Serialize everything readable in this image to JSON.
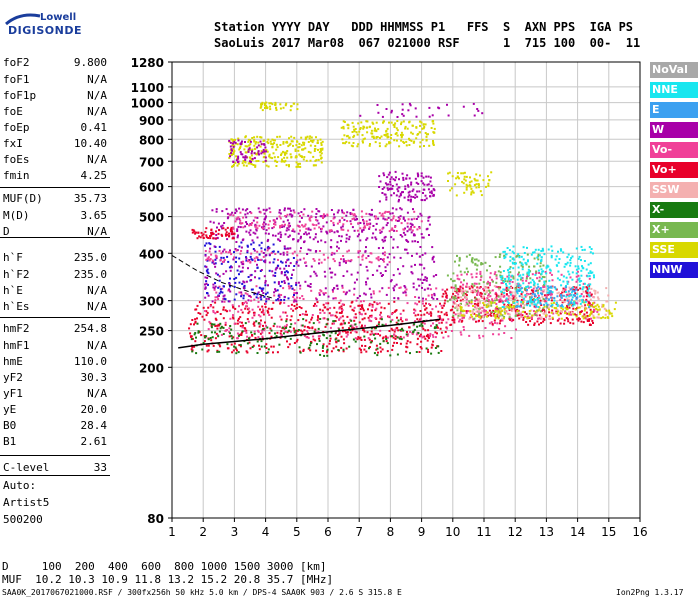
{
  "logo": {
    "line1": "Lowell",
    "line2": "DIGISONDE"
  },
  "header": {
    "row1": "Station YYYY DAY   DDD HHMMSS P1   FFS  S  AXN PPS  IGA PS",
    "row2": "SaoLuis 2017 Mar08  067 021000 RSF      1  715 100  00-  11"
  },
  "params": [
    {
      "name": "foF2",
      "value": "9.800"
    },
    {
      "name": "foF1",
      "value": "N/A"
    },
    {
      "name": "foF1p",
      "value": "N/A"
    },
    {
      "name": "foE",
      "value": "N/A"
    },
    {
      "name": "foEp",
      "value": "0.41"
    },
    {
      "name": "fxI",
      "value": "10.40"
    },
    {
      "name": "foEs",
      "value": "N/A"
    },
    {
      "name": "fmin",
      "value": "4.25"
    },
    {
      "name": "MUF(D)",
      "value": "35.73"
    },
    {
      "name": "M(D)",
      "value": "3.65"
    },
    {
      "name": "D",
      "value": "N/A"
    },
    {
      "name": "h`F",
      "value": "235.0"
    },
    {
      "name": "h`F2",
      "value": "235.0"
    },
    {
      "name": "h`E",
      "value": "N/A"
    },
    {
      "name": "h`Es",
      "value": "N/A"
    },
    {
      "name": "hmF2",
      "value": "254.8"
    },
    {
      "name": "hmF1",
      "value": "N/A"
    },
    {
      "name": "hmE",
      "value": "110.0"
    },
    {
      "name": "yF2",
      "value": "30.3"
    },
    {
      "name": "yF1",
      "value": "N/A"
    },
    {
      "name": "yE",
      "value": "20.0"
    },
    {
      "name": "B0",
      "value": "28.4"
    },
    {
      "name": "B1",
      "value": "2.61"
    },
    {
      "name": "C-level",
      "value": "33"
    }
  ],
  "auto": {
    "line1": "Auto:",
    "line2": "Artist5",
    "line3": "500200"
  },
  "legend": [
    {
      "label": "NoVal",
      "color": "#a8a8a8"
    },
    {
      "label": "NNE",
      "color": "#19e6ef"
    },
    {
      "label": "E",
      "color": "#3ca0f0"
    },
    {
      "label": "W",
      "color": "#a800a8"
    },
    {
      "label": "Vo-",
      "color": "#f04098"
    },
    {
      "label": "Vo+",
      "color": "#e8002a"
    },
    {
      "label": "SSW",
      "color": "#f4b0b0"
    },
    {
      "label": "X-",
      "color": "#187a10"
    },
    {
      "label": "X+",
      "color": "#78b850"
    },
    {
      "label": "SSE",
      "color": "#d8d800"
    },
    {
      "label": "NNW",
      "color": "#2010d8"
    }
  ],
  "muf_table": {
    "row1": "D     100  200  400  600  800 1000 1500 3000 [km]",
    "row2": "MUF  10.2 10.3 10.9 11.8 13.2 15.2 20.8 35.7 [MHz]"
  },
  "footer": {
    "left": "SAA0K_2017067021000.RSF / 300fx256h 50 kHz 5.0 km / DPS-4 SAA0K 903 / 2.6 S 315.8 E",
    "right": "Ion2Png 1.3.17"
  },
  "chart_data": {
    "type": "scatter",
    "title": "",
    "xlabel": "",
    "ylabel": "",
    "x_unit": "MHz",
    "y_unit": "km",
    "xlim": [
      1,
      16
    ],
    "ylim": [
      80,
      1280
    ],
    "y_scale": "log",
    "x_ticks": [
      1,
      2,
      3,
      4,
      5,
      6,
      7,
      8,
      9,
      10,
      11,
      12,
      13,
      14,
      15,
      16
    ],
    "y_ticks": [
      80,
      200,
      250,
      300,
      400,
      500,
      600,
      700,
      800,
      900,
      1000,
      1100,
      1280
    ],
    "grid": true,
    "legend_position": "right",
    "trace": {
      "name": "O-trace",
      "x": [
        1.2,
        2.0,
        3.0,
        4.0,
        5.0,
        6.0,
        7.0,
        8.0,
        9.0,
        9.6
      ],
      "y": [
        225,
        230,
        234,
        238,
        243,
        248,
        253,
        258,
        264,
        268
      ]
    },
    "trace_dashed": {
      "x": [
        1.0,
        1.8,
        2.6,
        3.4,
        4.2
      ],
      "y": [
        395,
        360,
        335,
        318,
        305
      ]
    },
    "clusters": [
      {
        "series": "Vo+",
        "xmin": 1.5,
        "xmax": 9.8,
        "ymin": 220,
        "ymax": 300,
        "count": 520
      },
      {
        "series": "Vo-",
        "xmin": 2.0,
        "xmax": 12.0,
        "ymin": 240,
        "ymax": 330,
        "count": 360
      },
      {
        "series": "X-",
        "xmin": 1.6,
        "xmax": 9.6,
        "ymin": 215,
        "ymax": 270,
        "count": 180
      },
      {
        "series": "Vo+",
        "xmin": 9.6,
        "xmax": 14.5,
        "ymin": 260,
        "ymax": 330,
        "count": 320
      },
      {
        "series": "Vo-",
        "xmin": 10.0,
        "xmax": 14.6,
        "ymin": 270,
        "ymax": 360,
        "count": 220
      },
      {
        "series": "X+",
        "xmin": 9.8,
        "xmax": 13.0,
        "ymin": 270,
        "ymax": 400,
        "count": 200
      },
      {
        "series": "SSW",
        "xmin": 10.0,
        "xmax": 15.0,
        "ymin": 270,
        "ymax": 330,
        "count": 180
      },
      {
        "series": "SSE",
        "xmin": 10.2,
        "xmax": 15.2,
        "ymin": 270,
        "ymax": 300,
        "count": 140
      },
      {
        "series": "NNE",
        "xmin": 11.5,
        "xmax": 14.5,
        "ymin": 290,
        "ymax": 420,
        "count": 280
      },
      {
        "series": "E",
        "xmin": 12.0,
        "xmax": 14.0,
        "ymin": 290,
        "ymax": 330,
        "count": 60
      },
      {
        "series": "NNW",
        "xmin": 2.0,
        "xmax": 5.0,
        "ymin": 300,
        "ymax": 430,
        "count": 160
      },
      {
        "series": "W",
        "xmin": 2.0,
        "xmax": 9.5,
        "ymin": 300,
        "ymax": 420,
        "count": 300
      },
      {
        "series": "Vo-",
        "xmin": 2.0,
        "xmax": 8.0,
        "ymin": 380,
        "ymax": 410,
        "count": 90
      },
      {
        "series": "W",
        "xmin": 2.2,
        "xmax": 9.3,
        "ymin": 430,
        "ymax": 530,
        "count": 330
      },
      {
        "series": "Vo-",
        "xmin": 2.8,
        "xmax": 9.0,
        "ymin": 460,
        "ymax": 520,
        "count": 150
      },
      {
        "series": "Vo+",
        "xmin": 1.6,
        "xmax": 3.0,
        "ymin": 440,
        "ymax": 470,
        "count": 60
      },
      {
        "series": "W",
        "xmin": 7.6,
        "xmax": 9.4,
        "ymin": 550,
        "ymax": 660,
        "count": 120
      },
      {
        "series": "SSE",
        "xmin": 9.8,
        "xmax": 11.2,
        "ymin": 570,
        "ymax": 660,
        "count": 60
      },
      {
        "series": "SSE",
        "xmin": 2.8,
        "xmax": 5.8,
        "ymin": 680,
        "ymax": 820,
        "count": 260
      },
      {
        "series": "SSE",
        "xmin": 6.4,
        "xmax": 9.4,
        "ymin": 770,
        "ymax": 900,
        "count": 180
      },
      {
        "series": "W",
        "xmin": 2.8,
        "xmax": 4.0,
        "ymin": 700,
        "ymax": 800,
        "count": 60
      },
      {
        "series": "SSE",
        "xmin": 3.8,
        "xmax": 5.0,
        "ymin": 960,
        "ymax": 1010,
        "count": 40
      },
      {
        "series": "W",
        "xmin": 7.0,
        "xmax": 11.0,
        "ymin": 920,
        "ymax": 1000,
        "count": 30
      }
    ]
  }
}
